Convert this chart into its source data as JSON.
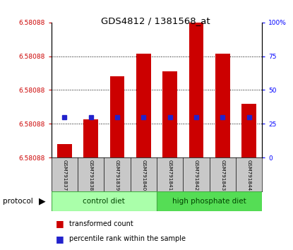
{
  "title": "GDS4812 / 1381568_at",
  "samples": [
    "GSM791837",
    "GSM791838",
    "GSM791839",
    "GSM791840",
    "GSM791841",
    "GSM791842",
    "GSM791843",
    "GSM791844"
  ],
  "bar_heights": [
    0.1,
    0.28,
    0.6,
    0.77,
    0.64,
    1.0,
    0.77,
    0.4
  ],
  "percentile_ranks_pct": [
    30,
    30,
    30,
    30,
    30,
    30,
    30,
    30
  ],
  "y_ticks_left_labels": [
    "6.58088",
    "6.58088",
    "6.58088",
    "6.58088",
    "6.58088"
  ],
  "y_ticks_right": [
    0,
    25,
    50,
    75,
    100
  ],
  "bar_color": "#CC0000",
  "dot_color": "#2222CC",
  "ctrl_color": "#AAFFAA",
  "hp_color": "#55DD55",
  "group_edge_color": "#44AA44",
  "sample_bg_color": "#C8C8C8",
  "legend_bar_color": "#CC0000",
  "legend_dot_color": "#2222CC",
  "ctrl_label": "control diet",
  "hp_label": "high phosphate diet",
  "protocol_label": "protocol",
  "legend_item1": "transformed count",
  "legend_item2": "percentile rank within the sample"
}
